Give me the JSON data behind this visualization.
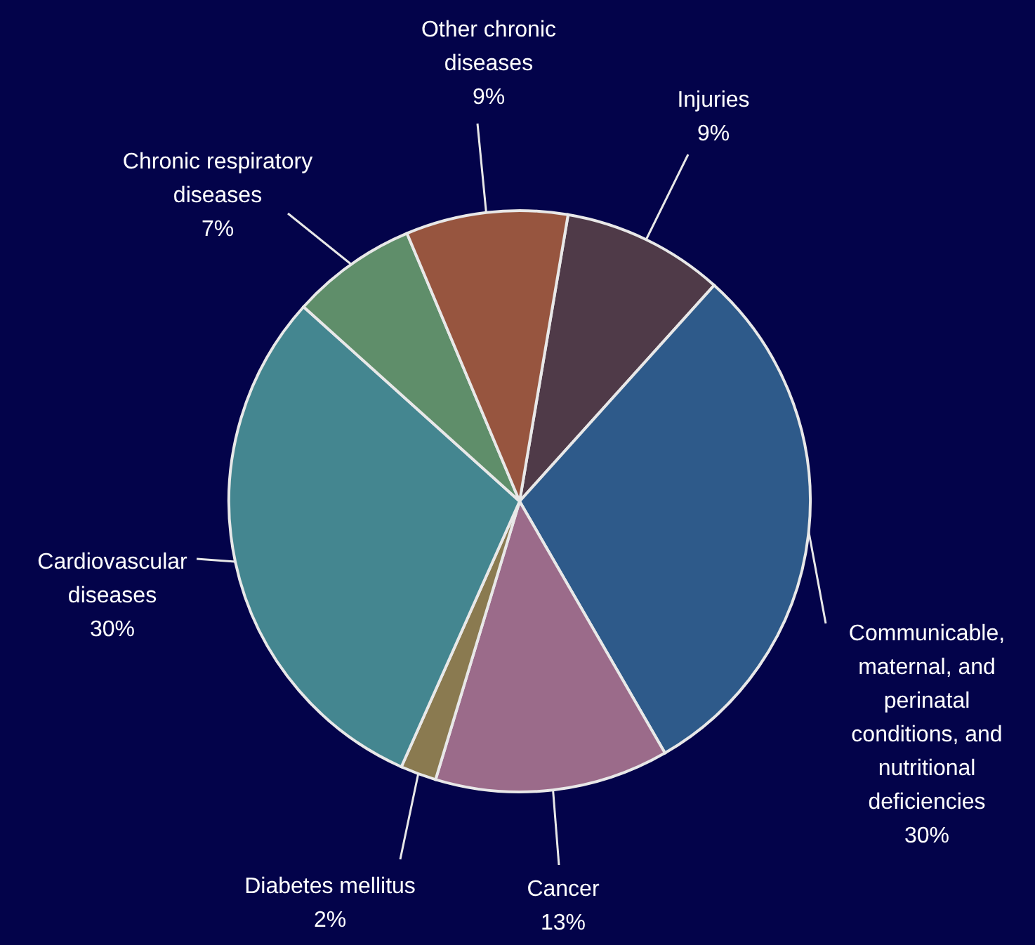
{
  "chart_data": {
    "type": "pie",
    "categories": [
      "Injuries",
      "Communicable, maternal, and perinatal conditions, and nutritional deficiencies",
      "Cancer",
      "Diabetes mellitus",
      "Cardiovascular diseases",
      "Chronic respiratory diseases",
      "Other chronic diseases"
    ],
    "values": [
      9,
      30,
      13,
      2,
      30,
      7,
      9
    ],
    "value_labels": [
      "9%",
      "30%",
      "13%",
      "2%",
      "30%",
      "7%",
      "9%"
    ],
    "colors": [
      "#4f3a48",
      "#2e5a8a",
      "#9b6b8a",
      "#8a7a50",
      "#448690",
      "#5f8e6a",
      "#97553f"
    ]
  }
}
